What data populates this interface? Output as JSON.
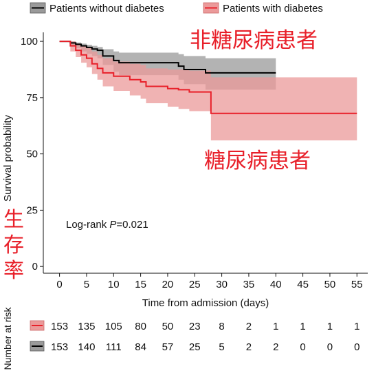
{
  "chart_data": {
    "type": "line",
    "subtype": "kaplan-meier",
    "xlabel": "Time from admission (days)",
    "ylabel": "Survival probability",
    "xlim": [
      -3,
      57
    ],
    "ylim": [
      -3,
      104
    ],
    "x_ticks": [
      0,
      5,
      10,
      15,
      20,
      25,
      30,
      35,
      40,
      45,
      50,
      55
    ],
    "y_ticks": [
      0,
      25,
      50,
      75,
      100
    ],
    "grid": false,
    "legend_position": "top",
    "annotation": {
      "prefix": "Log-rank ",
      "italic": "P",
      "suffix": "=0.021"
    },
    "overlay_labels": {
      "without_diabetes": "非糖尿病患者",
      "with_diabetes": "糖尿病患者",
      "survival_rate": [
        "生",
        "存",
        "率"
      ]
    },
    "series": [
      {
        "name": "Patients without diabetes",
        "color": "#000000",
        "band_color": "#9a9a9a",
        "steps": [
          [
            0,
            100
          ],
          [
            2,
            99.3
          ],
          [
            3,
            98.7
          ],
          [
            4,
            98
          ],
          [
            5,
            97.3
          ],
          [
            6,
            96.6
          ],
          [
            7,
            96
          ],
          [
            8,
            93.5
          ],
          [
            10,
            91.5
          ],
          [
            11,
            90.5
          ],
          [
            22,
            89
          ],
          [
            23,
            87.5
          ],
          [
            27,
            86
          ],
          [
            40,
            86
          ]
        ],
        "ci": [
          [
            0,
            100,
            100
          ],
          [
            2,
            100,
            98
          ],
          [
            3,
            99.5,
            97
          ],
          [
            4,
            99,
            95.5
          ],
          [
            5,
            98.5,
            94.5
          ],
          [
            6,
            98,
            93.5
          ],
          [
            7,
            97.5,
            92.5
          ],
          [
            8,
            96.5,
            89.5
          ],
          [
            10,
            95.5,
            86.5
          ],
          [
            11,
            95,
            85
          ],
          [
            22,
            94.3,
            83
          ],
          [
            23,
            93.5,
            81
          ],
          [
            27,
            92.5,
            78.5
          ],
          [
            40,
            92.5,
            78.5
          ]
        ]
      },
      {
        "name": "Patients with diabetes",
        "color": "#e8202a",
        "band_color": "#eb9a9a",
        "steps": [
          [
            0,
            100
          ],
          [
            2,
            98
          ],
          [
            3,
            96
          ],
          [
            4,
            94
          ],
          [
            5,
            92.5
          ],
          [
            6,
            90
          ],
          [
            7,
            88
          ],
          [
            8,
            86
          ],
          [
            10,
            84.5
          ],
          [
            13,
            83
          ],
          [
            15,
            82
          ],
          [
            16,
            80
          ],
          [
            20,
            79
          ],
          [
            22,
            78.5
          ],
          [
            24,
            77.5
          ],
          [
            28,
            68
          ],
          [
            55,
            68
          ]
        ],
        "ci": [
          [
            0,
            100,
            100
          ],
          [
            2,
            100,
            95.5
          ],
          [
            3,
            99,
            93
          ],
          [
            4,
            98,
            90.5
          ],
          [
            5,
            97,
            88.5
          ],
          [
            6,
            95.5,
            85.5
          ],
          [
            7,
            94,
            83
          ],
          [
            8,
            92.5,
            80
          ],
          [
            10,
            91,
            78
          ],
          [
            13,
            90,
            76
          ],
          [
            15,
            89.5,
            74.5
          ],
          [
            16,
            88,
            72.5
          ],
          [
            20,
            87.5,
            71
          ],
          [
            22,
            87.5,
            70
          ],
          [
            24,
            87,
            69
          ],
          [
            28,
            84,
            56
          ],
          [
            55,
            84,
            56
          ]
        ]
      }
    ],
    "risk_table": {
      "title": "Number at risk",
      "times": [
        0,
        5,
        10,
        15,
        20,
        25,
        30,
        35,
        40,
        45,
        50,
        55
      ],
      "rows": [
        {
          "name": "Patients with diabetes",
          "color": "#e8202a",
          "band_color": "#eb9a9a",
          "values": [
            "153",
            "135",
            "105",
            "80",
            "50",
            "23",
            "8",
            "2",
            "1",
            "1",
            "1",
            "1"
          ]
        },
        {
          "name": "Patients without diabetes",
          "color": "#000000",
          "band_color": "#9a9a9a",
          "values": [
            "153",
            "140",
            "111",
            "84",
            "57",
            "25",
            "5",
            "2",
            "2",
            "0",
            "0",
            "0"
          ]
        }
      ]
    }
  }
}
